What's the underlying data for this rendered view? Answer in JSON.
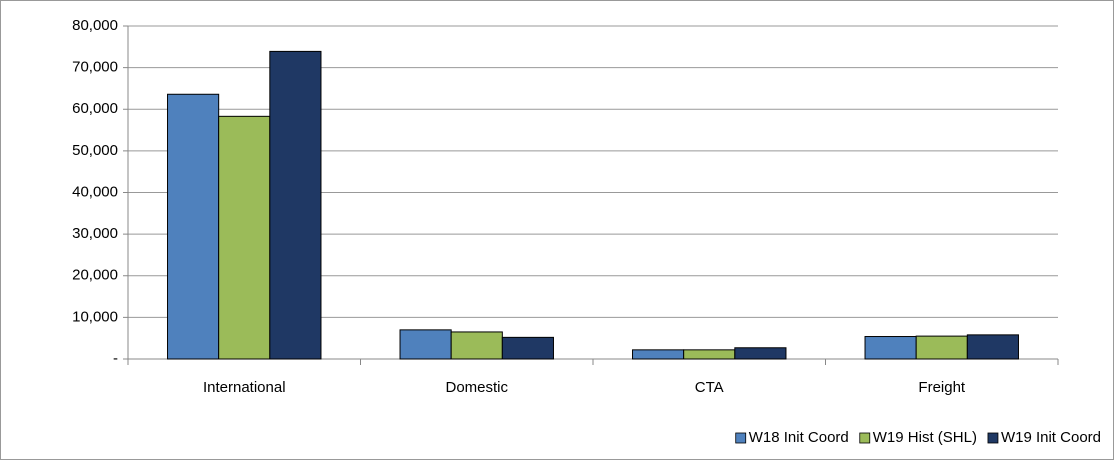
{
  "chart_data": {
    "type": "bar",
    "categories": [
      "International",
      "Domestic",
      "CTA",
      "Freight"
    ],
    "series": [
      {
        "name": "W18 Init Coord",
        "color": "#4f81bd",
        "values": [
          63600,
          7000,
          2200,
          5400
        ]
      },
      {
        "name": "W19 Hist (SHL)",
        "color": "#9bbb59",
        "values": [
          58300,
          6500,
          2200,
          5500
        ]
      },
      {
        "name": "W19 Init Coord",
        "color": "#1f3864",
        "values": [
          73900,
          5200,
          2700,
          5800
        ]
      }
    ],
    "ylim": [
      0,
      80000
    ],
    "yticks": [
      {
        "value": 0,
        "label": "-"
      },
      {
        "value": 10000,
        "label": "10,000"
      },
      {
        "value": 20000,
        "label": "20,000"
      },
      {
        "value": 30000,
        "label": "30,000"
      },
      {
        "value": 40000,
        "label": "40,000"
      },
      {
        "value": 50000,
        "label": "50,000"
      },
      {
        "value": 60000,
        "label": "60,000"
      },
      {
        "value": 70000,
        "label": "70,000"
      },
      {
        "value": 80000,
        "label": "80,000"
      }
    ],
    "grid": true,
    "legend": "bottom-right"
  }
}
